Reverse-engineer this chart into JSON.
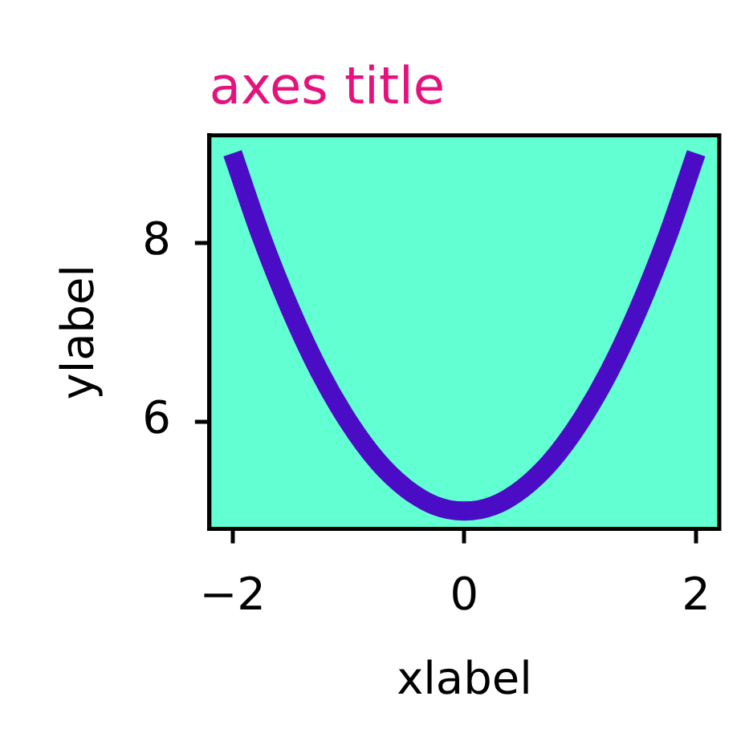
{
  "chart_data": {
    "type": "line",
    "title": "axes title",
    "xlabel": "xlabel",
    "ylabel": "ylabel",
    "x": [
      -2,
      -1.75,
      -1.5,
      -1.25,
      -1,
      -0.75,
      -0.5,
      -0.25,
      0,
      0.25,
      0.5,
      0.75,
      1,
      1.25,
      1.5,
      1.75,
      2
    ],
    "values": [
      9,
      8.06,
      7.25,
      6.56,
      6,
      5.56,
      5.25,
      5.06,
      5,
      5.06,
      5.25,
      5.56,
      6,
      6.56,
      7.25,
      8.06,
      9
    ],
    "color": "#4b0cc5",
    "xlim": [
      -2.2,
      2.2
    ],
    "ylim": [
      4.8,
      9.2
    ],
    "xticks": [
      -2,
      0,
      2
    ],
    "yticks": [
      6,
      8
    ]
  }
}
